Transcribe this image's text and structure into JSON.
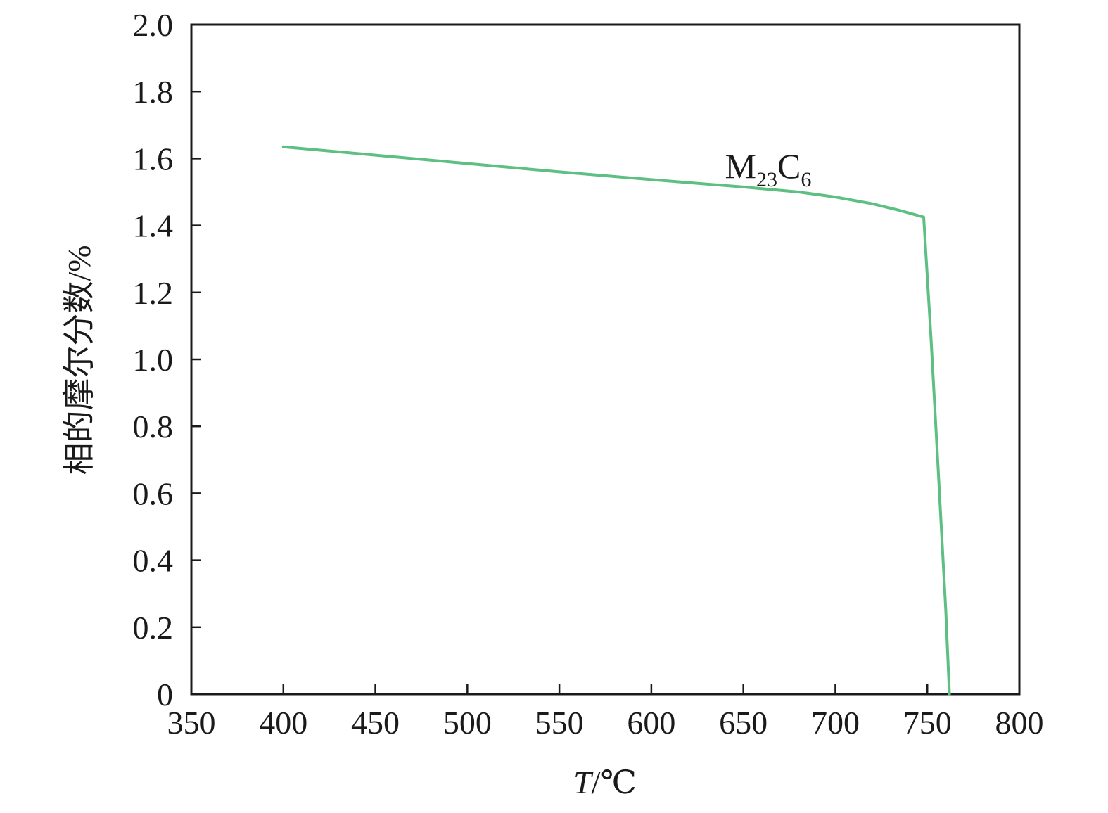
{
  "chart_data": {
    "type": "line",
    "xlabel_italic": "T",
    "xlabel_rest": "/℃",
    "ylabel": "相的摩尔分数/%",
    "xlim": [
      350,
      800
    ],
    "ylim": [
      0,
      2.0
    ],
    "xticks": [
      "350",
      "400",
      "450",
      "500",
      "550",
      "600",
      "650",
      "700",
      "750",
      "800"
    ],
    "yticks": [
      "0",
      "0.2",
      "0.4",
      "0.6",
      "0.8",
      "1.0",
      "1.2",
      "1.4",
      "1.6",
      "1.8",
      "2.0"
    ],
    "grid": false,
    "series": [
      {
        "color": "#5dbf82",
        "x": [
          400,
          450,
          500,
          550,
          600,
          650,
          680,
          700,
          720,
          735,
          748,
          752,
          756,
          760,
          762
        ],
        "y": [
          1.635,
          1.61,
          1.585,
          1.56,
          1.537,
          1.515,
          1.5,
          1.485,
          1.465,
          1.445,
          1.425,
          1.06,
          0.66,
          0.25,
          0.0
        ]
      }
    ],
    "annotations": [
      {
        "base": "M",
        "sub1": "23",
        "mid": "C",
        "sub2": "6",
        "x": 640,
        "y": 1.58
      }
    ]
  }
}
